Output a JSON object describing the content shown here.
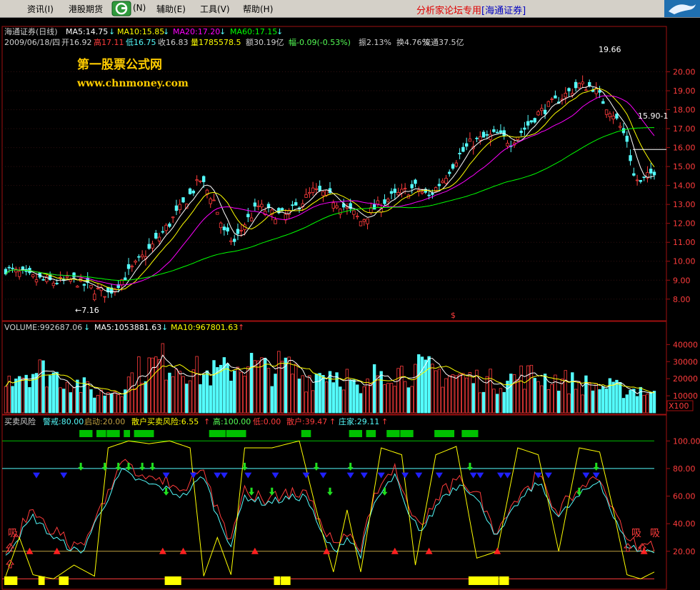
{
  "menubar": {
    "items": [
      "资讯(I)",
      "港股期货",
      "(N)",
      "辅助(E)",
      "工具(V)",
      "帮助(H)"
    ],
    "forum_label": "分析家论坛专用",
    "broker_label": "[海通证券]"
  },
  "price_panel": {
    "title": "海通证券(日线)",
    "ma": [
      {
        "label": "MA5:14.75",
        "color": "#ffffff"
      },
      {
        "label": "MA10:15.85",
        "color": "#ffff00"
      },
      {
        "label": "MA20:17.20",
        "color": "#ff00ff"
      },
      {
        "label": "MA60:17.15",
        "color": "#00ff00"
      }
    ],
    "info_date": "2009/06/18/四",
    "info_open": "开16.92",
    "info_high": "高17.11",
    "info_low": "低16.75",
    "info_close": "收16.83",
    "info_vol": "量1785578.5",
    "info_amt": "额30.19亿",
    "info_range": "幅-0.09(-0.53%)",
    "info_amp": "振2.13%",
    "info_turn": "换4.76%",
    "info_float": "流通37.5亿",
    "watermark_cn": "第一股票公式网",
    "watermark_url": "www.chnmoney.com",
    "high_mark": "19.66",
    "low_mark": "←7.16",
    "cursor_price": "15.90-1",
    "s_marker": "$"
  },
  "volume_panel": {
    "title": "VOLUME:992687.06",
    "ma5": "MA5:1053881.63",
    "ma10": "MA10:967801.63",
    "unit": "X100"
  },
  "indicator_panel": {
    "title": "买卖风险",
    "warn": "警戒:80.00",
    "start": "启动:20.00",
    "risk": "散户买卖风险:6.55",
    "high": "高:100.00",
    "low": "低:0.00",
    "retail": "散户:39.47",
    "dealer": "庄家:29.11",
    "buy_label": "吸"
  },
  "chart_data": {
    "type": "candlestick",
    "price_axis": {
      "ticks": [
        "8.00",
        "9.00",
        "10.00",
        "11.00",
        "12.00",
        "13.00",
        "14.00",
        "15.00",
        "16.00",
        "17.00",
        "18.00",
        "19.00",
        "20.00"
      ],
      "range": [
        7.2,
        21.0
      ]
    },
    "volume_axis": {
      "ticks": [
        "10000",
        "20000",
        "30000",
        "40000"
      ],
      "range": [
        0,
        46000
      ]
    },
    "indicator_axis": {
      "ticks": [
        "20.00",
        "40.00",
        "60.00",
        "80.00",
        "100.00"
      ],
      "range": [
        -6,
        110
      ]
    },
    "colors": {
      "up": "#ff3c3c",
      "down": "#54fcfc",
      "ma5": "#ffffff",
      "ma10": "#ffff00",
      "ma20": "#ff00ff",
      "ma60": "#00ff00",
      "retail": "#ff3c3c",
      "dealer": "#54fcfc",
      "risk": "#ffff00"
    },
    "price_anchors": [
      [
        0,
        9.6
      ],
      [
        8,
        9.1
      ],
      [
        14,
        8.9
      ],
      [
        20,
        9.0
      ],
      [
        26,
        8.5
      ],
      [
        30,
        8.3
      ],
      [
        36,
        9.4
      ],
      [
        42,
        10.6
      ],
      [
        48,
        12.0
      ],
      [
        54,
        13.5
      ],
      [
        57,
        14.3
      ],
      [
        61,
        13.2
      ],
      [
        64,
        11.5
      ],
      [
        67,
        11.0
      ],
      [
        70,
        12.0
      ],
      [
        74,
        12.9
      ],
      [
        78,
        12.5
      ],
      [
        82,
        12.4
      ],
      [
        86,
        13.0
      ],
      [
        90,
        13.7
      ],
      [
        94,
        13.5
      ],
      [
        98,
        13.0
      ],
      [
        102,
        12.5
      ],
      [
        104,
        12.1
      ],
      [
        108,
        12.8
      ],
      [
        112,
        13.3
      ],
      [
        116,
        13.6
      ],
      [
        120,
        13.9
      ],
      [
        124,
        13.4
      ],
      [
        128,
        14.3
      ],
      [
        132,
        15.4
      ],
      [
        136,
        16.2
      ],
      [
        140,
        16.5
      ],
      [
        144,
        16.7
      ],
      [
        148,
        16.3
      ],
      [
        152,
        17.0
      ],
      [
        156,
        17.8
      ],
      [
        160,
        18.3
      ],
      [
        164,
        18.8
      ],
      [
        168,
        19.3
      ],
      [
        172,
        19.2
      ],
      [
        176,
        18.2
      ],
      [
        178,
        17.8
      ],
      [
        182,
        16.4
      ],
      [
        184,
        14.5
      ],
      [
        186,
        14.1
      ],
      [
        190,
        14.8
      ]
    ],
    "volume_anchors": [
      [
        0,
        23000
      ],
      [
        10,
        25000
      ],
      [
        20,
        18000
      ],
      [
        27,
        11000
      ],
      [
        33,
        14000
      ],
      [
        40,
        26000
      ],
      [
        46,
        30000
      ],
      [
        52,
        28000
      ],
      [
        58,
        22000
      ],
      [
        64,
        24000
      ],
      [
        70,
        30000
      ],
      [
        76,
        25000
      ],
      [
        82,
        27000
      ],
      [
        88,
        20000
      ],
      [
        94,
        25000
      ],
      [
        100,
        21000
      ],
      [
        104,
        10000
      ],
      [
        110,
        27000
      ],
      [
        116,
        24000
      ],
      [
        122,
        25000
      ],
      [
        128,
        23000
      ],
      [
        136,
        20000
      ],
      [
        144,
        18000
      ],
      [
        152,
        22000
      ],
      [
        160,
        20000
      ],
      [
        168,
        17000
      ],
      [
        176,
        15000
      ],
      [
        182,
        13000
      ],
      [
        186,
        14000
      ],
      [
        190,
        10000
      ]
    ],
    "indicator_anchors": [
      [
        0,
        18
      ],
      [
        8,
        45
      ],
      [
        14,
        30
      ],
      [
        22,
        18
      ],
      [
        28,
        50
      ],
      [
        34,
        78
      ],
      [
        40,
        70
      ],
      [
        46,
        66
      ],
      [
        52,
        60
      ],
      [
        58,
        75
      ],
      [
        62,
        45
      ],
      [
        66,
        25
      ],
      [
        70,
        60
      ],
      [
        76,
        55
      ],
      [
        82,
        58
      ],
      [
        88,
        60
      ],
      [
        92,
        35
      ],
      [
        96,
        20
      ],
      [
        100,
        30
      ],
      [
        104,
        18
      ],
      [
        108,
        55
      ],
      [
        114,
        75
      ],
      [
        118,
        45
      ],
      [
        122,
        35
      ],
      [
        128,
        60
      ],
      [
        134,
        70
      ],
      [
        140,
        50
      ],
      [
        144,
        30
      ],
      [
        150,
        55
      ],
      [
        156,
        70
      ],
      [
        162,
        45
      ],
      [
        168,
        60
      ],
      [
        174,
        72
      ],
      [
        178,
        45
      ],
      [
        182,
        25
      ],
      [
        186,
        20
      ],
      [
        190,
        20
      ]
    ],
    "risk_anchors": [
      [
        0,
        2
      ],
      [
        4,
        30
      ],
      [
        8,
        3
      ],
      [
        14,
        0
      ],
      [
        20,
        10
      ],
      [
        26,
        2
      ],
      [
        30,
        95
      ],
      [
        36,
        100
      ],
      [
        42,
        98
      ],
      [
        48,
        100
      ],
      [
        54,
        95
      ],
      [
        58,
        2
      ],
      [
        62,
        30
      ],
      [
        66,
        3
      ],
      [
        70,
        95
      ],
      [
        78,
        95
      ],
      [
        86,
        100
      ],
      [
        92,
        40
      ],
      [
        96,
        5
      ],
      [
        100,
        50
      ],
      [
        104,
        5
      ],
      [
        110,
        95
      ],
      [
        116,
        90
      ],
      [
        120,
        10
      ],
      [
        126,
        90
      ],
      [
        132,
        96
      ],
      [
        138,
        15
      ],
      [
        144,
        20
      ],
      [
        150,
        95
      ],
      [
        156,
        90
      ],
      [
        162,
        20
      ],
      [
        168,
        95
      ],
      [
        174,
        92
      ],
      [
        178,
        50
      ],
      [
        182,
        3
      ],
      [
        186,
        0
      ],
      [
        190,
        5
      ]
    ],
    "buy_arrows": [
      [
        7,
        20
      ],
      [
        15,
        20
      ],
      [
        46,
        20
      ],
      [
        52,
        20
      ],
      [
        73,
        20
      ],
      [
        94,
        20
      ],
      [
        114,
        20
      ],
      [
        124,
        20
      ],
      [
        144,
        20
      ],
      [
        187,
        20
      ]
    ],
    "sell_arrows": [
      [
        9,
        75
      ],
      [
        17,
        75
      ],
      [
        47,
        75
      ],
      [
        55,
        75
      ],
      [
        62,
        75
      ],
      [
        64,
        75
      ],
      [
        71,
        75
      ],
      [
        79,
        75
      ],
      [
        88,
        75
      ],
      [
        93,
        75
      ],
      [
        101,
        75
      ],
      [
        105,
        75
      ],
      [
        110,
        75
      ],
      [
        117,
        75
      ],
      [
        121,
        75
      ],
      [
        127,
        75
      ],
      [
        137,
        75
      ],
      [
        139,
        75
      ],
      [
        145,
        75
      ],
      [
        147,
        75
      ],
      [
        156,
        75
      ],
      [
        159,
        75
      ],
      [
        170,
        75
      ],
      [
        173,
        75
      ]
    ],
    "green_down_arrows": [
      [
        22,
        80
      ],
      [
        29,
        80
      ],
      [
        33,
        80
      ],
      [
        36,
        80
      ],
      [
        40,
        80
      ],
      [
        43,
        80
      ],
      [
        47,
        62
      ],
      [
        70,
        80
      ],
      [
        72,
        62
      ],
      [
        78,
        62
      ],
      [
        91,
        80
      ],
      [
        95,
        62
      ],
      [
        101,
        80
      ],
      [
        111,
        62
      ],
      [
        136,
        80
      ],
      [
        168,
        62
      ],
      [
        173,
        80
      ]
    ],
    "yellow_bars": [
      [
        0,
        3
      ],
      [
        10,
        1
      ],
      [
        16,
        2
      ],
      [
        47,
        1
      ],
      [
        48,
        3
      ],
      [
        79,
        1
      ],
      [
        81,
        2
      ],
      [
        136,
        8
      ],
      [
        145,
        2
      ]
    ],
    "green_bars": [
      [
        22,
        3
      ],
      [
        27,
        2
      ],
      [
        30,
        3
      ],
      [
        35,
        1
      ],
      [
        38,
        5
      ],
      [
        60,
        4
      ],
      [
        65,
        1
      ],
      [
        66,
        4
      ],
      [
        87,
        2
      ],
      [
        101,
        3
      ],
      [
        106,
        2
      ],
      [
        112,
        3
      ],
      [
        116,
        3
      ],
      [
        126,
        5
      ],
      [
        134,
        4
      ]
    ]
  }
}
